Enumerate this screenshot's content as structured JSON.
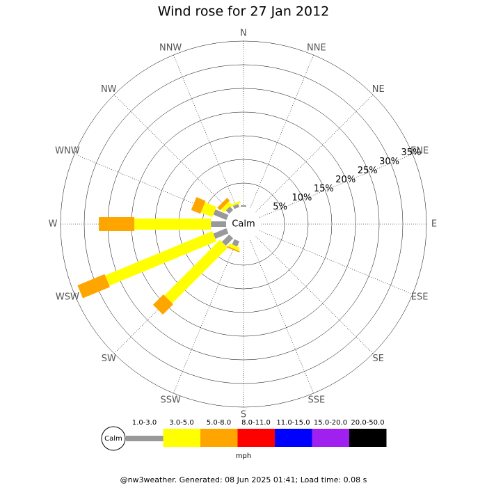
{
  "chart_data": {
    "type": "windrose",
    "title": "Wind rose for 27 Jan 2012",
    "directions": [
      "N",
      "NNE",
      "NE",
      "ENE",
      "E",
      "ESE",
      "SE",
      "SSE",
      "S",
      "SSW",
      "SW",
      "WSW",
      "W",
      "WNW",
      "NW",
      "NNW"
    ],
    "calm_label": "Calm",
    "rlim": [
      0,
      35
    ],
    "rticks": [
      {
        "value": 5,
        "label": "5%"
      },
      {
        "value": 10,
        "label": "10%"
      },
      {
        "value": 15,
        "label": "15%"
      },
      {
        "value": 20,
        "label": "20%"
      },
      {
        "value": 25,
        "label": "25%"
      },
      {
        "value": 30,
        "label": "30%"
      },
      {
        "value": 35,
        "label": "35%"
      }
    ],
    "series": [
      {
        "name": "1.0-3.0",
        "color": "#999999",
        "values": [
          0.3,
          0,
          0,
          0,
          0,
          0,
          0,
          0,
          0,
          1.2,
          2.2,
          3.0,
          3.2,
          3.0,
          1.0,
          0.7
        ]
      },
      {
        "name": "3.0-5.0",
        "color": "#ffff00",
        "values": [
          0,
          0,
          0,
          0,
          0,
          0,
          0,
          0,
          0,
          0.7,
          16.6,
          24.5,
          16.2,
          2.6,
          0.9,
          0.4
        ]
      },
      {
        "name": "5.0-8.0",
        "color": "#ffa500",
        "values": [
          0,
          0,
          0,
          0,
          0,
          0,
          0,
          0,
          0,
          0.3,
          3.1,
          6.2,
          7.5,
          2.1,
          0.8,
          0
        ]
      },
      {
        "name": "8.0-11.0",
        "color": "#ff0000",
        "values": [
          0,
          0,
          0,
          0,
          0,
          0,
          0,
          0,
          0,
          0,
          0,
          0,
          0,
          0,
          0,
          0
        ]
      },
      {
        "name": "11.0-15.0",
        "color": "#0000ff",
        "values": [
          0,
          0,
          0,
          0,
          0,
          0,
          0,
          0,
          0,
          0,
          0,
          0,
          0,
          0,
          0,
          0
        ]
      },
      {
        "name": "15.0-20.0",
        "color": "#a020f0",
        "values": [
          0,
          0,
          0,
          0,
          0,
          0,
          0,
          0,
          0,
          0,
          0,
          0,
          0,
          0,
          0,
          0
        ]
      },
      {
        "name": "20.0-50.0",
        "color": "#000000",
        "values": [
          0,
          0,
          0,
          0,
          0,
          0,
          0,
          0,
          0,
          0,
          0,
          0,
          0,
          0,
          0,
          0
        ]
      }
    ],
    "unit": "mph",
    "footer": "@nw3weather. Generated: 08 Jun 2025 01:41; Load time: 0.08 s"
  }
}
